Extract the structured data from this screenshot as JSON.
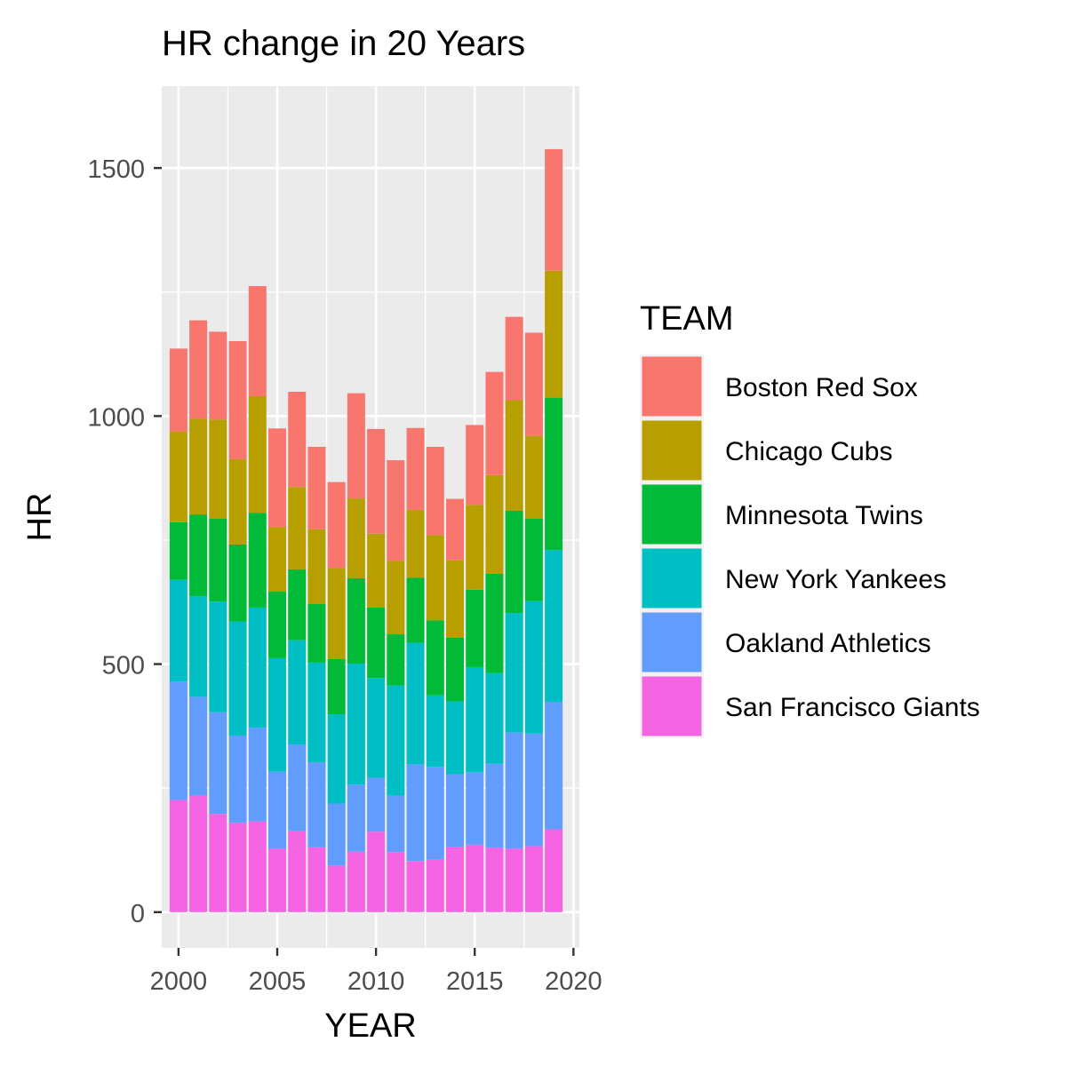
{
  "chart_data": {
    "type": "bar",
    "stacked": true,
    "title": "HR change in 20 Years",
    "xlabel": "YEAR",
    "ylabel": "HR",
    "x": [
      2000,
      2001,
      2002,
      2003,
      2004,
      2005,
      2006,
      2007,
      2008,
      2009,
      2010,
      2011,
      2012,
      2013,
      2014,
      2015,
      2016,
      2017,
      2018,
      2019
    ],
    "xticks": [
      "2000",
      "2005",
      "2010",
      "2015",
      "2020"
    ],
    "yticks": [
      "0",
      "500",
      "1000",
      "1500"
    ],
    "xlim": [
      1999.15,
      2020.3
    ],
    "ylim": [
      -72,
      1665
    ],
    "grid": true,
    "legend": {
      "title": "TEAM",
      "placement": "right"
    },
    "series": [
      {
        "name": "San Francisco Giants",
        "color": "#F564E3",
        "values": [
          226,
          235,
          198,
          180,
          183,
          128,
          163,
          131,
          94,
          122,
          162,
          121,
          103,
          107,
          132,
          136,
          130,
          128,
          133,
          167
        ]
      },
      {
        "name": "Oakland Athletics",
        "color": "#619CFF",
        "values": [
          239,
          199,
          205,
          176,
          189,
          155,
          175,
          171,
          125,
          135,
          109,
          114,
          195,
          186,
          146,
          146,
          169,
          234,
          227,
          257
        ]
      },
      {
        "name": "New York Yankees",
        "color": "#00BFC4",
        "values": [
          205,
          203,
          223,
          230,
          242,
          229,
          210,
          201,
          180,
          244,
          201,
          222,
          245,
          144,
          147,
          212,
          183,
          241,
          267,
          306
        ]
      },
      {
        "name": "Minnesota Twins",
        "color": "#00BA38",
        "values": [
          116,
          164,
          167,
          155,
          191,
          134,
          143,
          118,
          111,
          172,
          142,
          103,
          131,
          151,
          128,
          156,
          200,
          206,
          166,
          307
        ]
      },
      {
        "name": "Chicago Cubs",
        "color": "#B79F00",
        "values": [
          183,
          194,
          200,
          172,
          235,
          130,
          166,
          151,
          184,
          161,
          149,
          148,
          137,
          172,
          157,
          171,
          199,
          223,
          167,
          256
        ]
      },
      {
        "name": "Boston Red Sox",
        "color": "#F8766D",
        "values": [
          167,
          198,
          177,
          238,
          222,
          199,
          192,
          166,
          173,
          212,
          211,
          203,
          165,
          178,
          123,
          161,
          208,
          168,
          208,
          245
        ]
      }
    ]
  }
}
